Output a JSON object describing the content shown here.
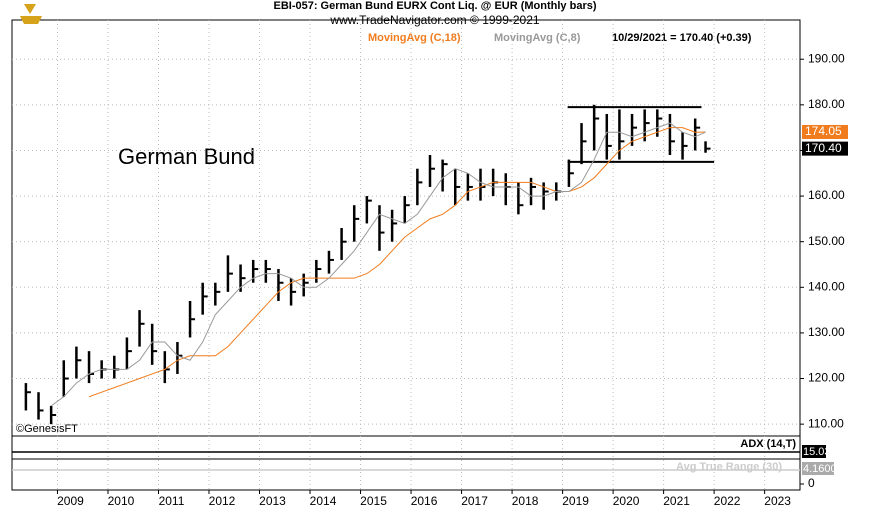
{
  "chart_data": {
    "type": "ohlc",
    "title": "EBI-057:  German Bund EURX Cont Liq. @ EUR  (Monthly bars)",
    "subtitle": "www.TradeNavigator.com © 1999-2021",
    "header_value": "10/29/2021 = 170.40 (+0.39)",
    "annotation": "German Bund",
    "watermark": "©GenesisFT",
    "x": [
      2008.375,
      2008.625,
      2008.875,
      2009.125,
      2009.375,
      2009.625,
      2009.875,
      2010.125,
      2010.375,
      2010.625,
      2010.875,
      2011.125,
      2011.375,
      2011.625,
      2011.875,
      2012.125,
      2012.375,
      2012.625,
      2012.875,
      2013.125,
      2013.375,
      2013.625,
      2013.875,
      2014.125,
      2014.375,
      2014.625,
      2014.875,
      2015.125,
      2015.375,
      2015.625,
      2015.875,
      2016.125,
      2016.375,
      2016.625,
      2016.875,
      2017.125,
      2017.375,
      2017.625,
      2017.875,
      2018.125,
      2018.375,
      2018.625,
      2018.875,
      2019.125,
      2019.375,
      2019.625,
      2019.875,
      2020.125,
      2020.375,
      2020.625,
      2020.875,
      2021.125,
      2021.375,
      2021.625,
      2021.83
    ],
    "high": [
      119,
      117,
      114,
      124,
      127,
      126,
      124,
      125,
      129,
      135,
      132,
      126,
      128,
      137,
      141,
      141,
      147,
      145,
      146,
      146,
      144,
      142,
      143,
      146,
      148,
      153,
      158,
      160,
      158,
      157,
      160,
      166,
      169,
      168,
      166,
      165,
      166,
      166,
      165,
      163,
      164,
      163,
      163,
      168,
      176,
      180,
      178,
      179,
      178,
      179,
      179,
      178,
      174,
      177,
      172
    ],
    "low": [
      113,
      111,
      110,
      116,
      120,
      119,
      120,
      120,
      122,
      127,
      123,
      119,
      121,
      129,
      134,
      136,
      139,
      139,
      141,
      141,
      137,
      136,
      138,
      141,
      143,
      146,
      150,
      154,
      148,
      150,
      154,
      158,
      162,
      161,
      158,
      159,
      159,
      160,
      158,
      156,
      158,
      157,
      159,
      162,
      167,
      170,
      168,
      168,
      171,
      172,
      173,
      169,
      168,
      170,
      169.5
    ],
    "close": [
      117,
      113,
      112,
      120,
      124,
      121,
      122,
      122,
      126,
      132,
      126,
      122,
      125,
      133,
      138,
      139,
      143,
      142,
      144,
      144,
      141,
      139,
      141,
      144,
      146,
      150,
      155,
      159,
      152,
      154,
      158,
      163,
      166,
      167,
      162,
      162,
      162,
      163,
      162,
      158,
      162,
      161,
      161,
      165,
      172,
      177,
      171,
      172,
      175,
      176,
      177,
      172,
      171,
      175,
      170.4
    ],
    "close_label": "170.40",
    "series": [
      {
        "name": "MovingAvg (C,18)",
        "color": "#f07c1e",
        "last_label": "174.05",
        "values": [
          null,
          null,
          null,
          null,
          null,
          116,
          117,
          118,
          119,
          120,
          121,
          122,
          124,
          125,
          125,
          125,
          127,
          130,
          133,
          136,
          139,
          141,
          142,
          142,
          142,
          142,
          142,
          143,
          145,
          148,
          151,
          153,
          155,
          156,
          158,
          161,
          162,
          163,
          163,
          163,
          163,
          162,
          161,
          161,
          162,
          164,
          167,
          170,
          172,
          173,
          174,
          175,
          175,
          174,
          174.05
        ]
      },
      {
        "name": "MovingAvg (C,8)",
        "color": "#999999",
        "values": [
          null,
          null,
          114,
          116,
          119,
          121,
          122,
          122,
          122,
          124,
          128,
          128,
          125,
          124,
          128,
          134,
          137,
          140,
          142,
          143,
          143,
          142,
          140,
          140,
          142,
          145,
          148,
          152,
          156,
          155,
          154,
          156,
          160,
          164,
          166,
          165,
          163,
          162,
          162,
          162,
          160,
          160,
          161,
          161,
          163,
          168,
          174,
          174,
          173,
          174,
          175,
          176,
          174,
          173,
          174
        ]
      }
    ],
    "levels": [
      {
        "value": 179.5,
        "from": 2019.1,
        "to": 2021.75
      },
      {
        "value": 167.5,
        "from": 2019.1,
        "to": 2022.0
      }
    ],
    "xlim": [
      2008.1,
      2023.7
    ],
    "xticks": [
      2009,
      2010,
      2011,
      2012,
      2013,
      2014,
      2015,
      2016,
      2017,
      2018,
      2019,
      2020,
      2021,
      2022,
      2023
    ],
    "ylim": [
      107.4,
      198.6
    ],
    "yticks": [
      {
        "value": 110,
        "label": "110.00"
      },
      {
        "value": 120,
        "label": "120.00"
      },
      {
        "value": 130,
        "label": "130.00"
      },
      {
        "value": 140,
        "label": "140.00"
      },
      {
        "value": 150,
        "label": "150.00"
      },
      {
        "value": 160,
        "label": "160.00"
      },
      {
        "value": 170,
        "label": "170.00"
      },
      {
        "value": 180,
        "label": "180.00"
      },
      {
        "value": 190,
        "label": "190.00"
      }
    ],
    "indicators": [
      {
        "name": "ADX (14,T)",
        "value": 15.03
      },
      {
        "name": "Avg True Range (30)",
        "value": 4.16,
        "value_label": "4.1600",
        "yticks": [
          0
        ]
      }
    ]
  }
}
